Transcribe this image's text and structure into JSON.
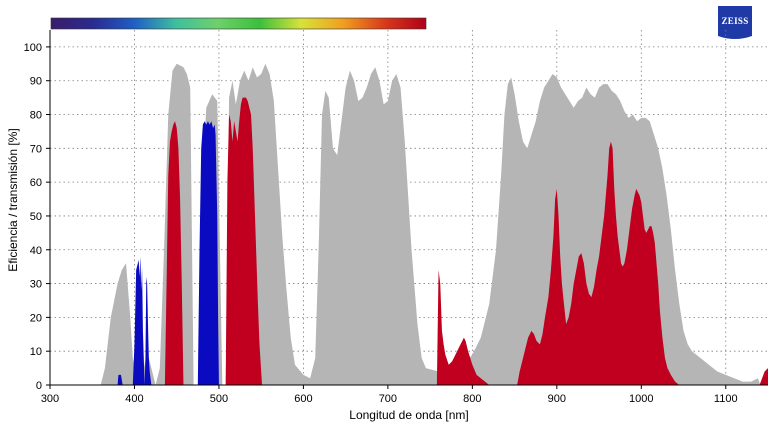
{
  "brand": {
    "logo_text": "ZEISS",
    "logo_color": "#1f3aa6"
  },
  "spectrum_bar": {
    "stops": [
      "#3b1d6b",
      "#2a2a8f",
      "#1f5fc4",
      "#3fbf9f",
      "#6fd06a",
      "#3cbf3c",
      "#d8e23a",
      "#f0a020",
      "#d83a1a",
      "#b00018"
    ]
  },
  "chart_data": {
    "type": "area",
    "xlabel": "Longitud de onda [nm]",
    "ylabel": "Eficiencia / transmisión [%]",
    "xlim": [
      300,
      1150
    ],
    "ylim": [
      0,
      105
    ],
    "x_ticks": [
      300,
      400,
      500,
      600,
      700,
      800,
      900,
      1000,
      1100
    ],
    "y_ticks": [
      0,
      10,
      20,
      30,
      40,
      50,
      60,
      70,
      80,
      90,
      100
    ],
    "grid": true,
    "legend": "none",
    "series": [
      {
        "color": "#b5b5b5",
        "points": [
          [
            360,
            0
          ],
          [
            365,
            5
          ],
          [
            372,
            20
          ],
          [
            380,
            30
          ],
          [
            385,
            34
          ],
          [
            390,
            36
          ],
          [
            395,
            20
          ],
          [
            398,
            8
          ],
          [
            402,
            3
          ],
          [
            408,
            1
          ],
          [
            415,
            10
          ],
          [
            420,
            5
          ],
          [
            425,
            0
          ],
          [
            430,
            5
          ],
          [
            435,
            40
          ],
          [
            440,
            80
          ],
          [
            445,
            93
          ],
          [
            450,
            95
          ],
          [
            458,
            94
          ],
          [
            462,
            92
          ],
          [
            466,
            88
          ],
          [
            470,
            0
          ],
          [
            476,
            0
          ],
          [
            480,
            60
          ],
          [
            485,
            82
          ],
          [
            492,
            86
          ],
          [
            498,
            84
          ],
          [
            504,
            0
          ],
          [
            508,
            0
          ],
          [
            512,
            85
          ],
          [
            516,
            90
          ],
          [
            520,
            83
          ],
          [
            525,
            90
          ],
          [
            530,
            93
          ],
          [
            535,
            90
          ],
          [
            540,
            94
          ],
          [
            545,
            91
          ],
          [
            550,
            92
          ],
          [
            555,
            95
          ],
          [
            560,
            92
          ],
          [
            565,
            84
          ],
          [
            570,
            64
          ],
          [
            575,
            44
          ],
          [
            580,
            28
          ],
          [
            585,
            14
          ],
          [
            590,
            6
          ],
          [
            600,
            3
          ],
          [
            608,
            2
          ],
          [
            614,
            8
          ],
          [
            618,
            40
          ],
          [
            622,
            80
          ],
          [
            626,
            87
          ],
          [
            630,
            85
          ],
          [
            635,
            70
          ],
          [
            640,
            68
          ],
          [
            645,
            78
          ],
          [
            650,
            88
          ],
          [
            655,
            93
          ],
          [
            660,
            90
          ],
          [
            665,
            84
          ],
          [
            670,
            85
          ],
          [
            675,
            88
          ],
          [
            680,
            92
          ],
          [
            685,
            94
          ],
          [
            690,
            90
          ],
          [
            695,
            83
          ],
          [
            700,
            84
          ],
          [
            705,
            90
          ],
          [
            710,
            92
          ],
          [
            715,
            88
          ],
          [
            720,
            72
          ],
          [
            728,
            40
          ],
          [
            735,
            18
          ],
          [
            740,
            8
          ],
          [
            745,
            5
          ],
          [
            760,
            4
          ],
          [
            775,
            4
          ],
          [
            790,
            6
          ],
          [
            800,
            9
          ],
          [
            810,
            14
          ],
          [
            820,
            24
          ],
          [
            828,
            40
          ],
          [
            834,
            62
          ],
          [
            838,
            80
          ],
          [
            842,
            89
          ],
          [
            846,
            91
          ],
          [
            850,
            86
          ],
          [
            855,
            78
          ],
          [
            860,
            72
          ],
          [
            865,
            70
          ],
          [
            870,
            74
          ],
          [
            875,
            78
          ],
          [
            880,
            84
          ],
          [
            885,
            88
          ],
          [
            890,
            90
          ],
          [
            895,
            92
          ],
          [
            900,
            91
          ],
          [
            905,
            88
          ],
          [
            910,
            86
          ],
          [
            915,
            84
          ],
          [
            920,
            82
          ],
          [
            925,
            84
          ],
          [
            930,
            85
          ],
          [
            935,
            88
          ],
          [
            940,
            86
          ],
          [
            945,
            85
          ],
          [
            950,
            88
          ],
          [
            955,
            89
          ],
          [
            960,
            89
          ],
          [
            965,
            87
          ],
          [
            970,
            86
          ],
          [
            975,
            84
          ],
          [
            980,
            81
          ],
          [
            985,
            79
          ],
          [
            990,
            80
          ],
          [
            995,
            78
          ],
          [
            1000,
            79
          ],
          [
            1005,
            79
          ],
          [
            1010,
            78
          ],
          [
            1015,
            74
          ],
          [
            1020,
            70
          ],
          [
            1025,
            64
          ],
          [
            1030,
            56
          ],
          [
            1035,
            46
          ],
          [
            1040,
            34
          ],
          [
            1045,
            24
          ],
          [
            1050,
            16
          ],
          [
            1055,
            12
          ],
          [
            1060,
            10
          ],
          [
            1070,
            8
          ],
          [
            1080,
            6
          ],
          [
            1090,
            4
          ],
          [
            1100,
            3
          ],
          [
            1110,
            2
          ],
          [
            1120,
            1
          ],
          [
            1130,
            1
          ],
          [
            1138,
            2
          ],
          [
            1141,
            0
          ]
        ]
      },
      {
        "color": "#0a0ac0",
        "points": [
          [
            380,
            0
          ],
          [
            381,
            3
          ],
          [
            384,
            3
          ],
          [
            386,
            0
          ],
          [
            398,
            0
          ],
          [
            400,
            12
          ],
          [
            402,
            34
          ],
          [
            404,
            36
          ],
          [
            405,
            37
          ],
          [
            406,
            32
          ],
          [
            407,
            38
          ],
          [
            408,
            28
          ],
          [
            409,
            35
          ],
          [
            410,
            16
          ],
          [
            412,
            0
          ],
          [
            413,
            8
          ],
          [
            414,
            32
          ],
          [
            415,
            30
          ],
          [
            416,
            18
          ],
          [
            417,
            8
          ],
          [
            418,
            4
          ],
          [
            420,
            0
          ],
          [
            475,
            0
          ],
          [
            477,
            40
          ],
          [
            479,
            70
          ],
          [
            481,
            77
          ],
          [
            483,
            78
          ],
          [
            485,
            77
          ],
          [
            487,
            78
          ],
          [
            489,
            77
          ],
          [
            491,
            78
          ],
          [
            493,
            76
          ],
          [
            495,
            77
          ],
          [
            496,
            74
          ],
          [
            498,
            50
          ],
          [
            499,
            20
          ],
          [
            500,
            0
          ]
        ]
      },
      {
        "color": "#c0001e",
        "points": [
          [
            436,
            0
          ],
          [
            438,
            30
          ],
          [
            440,
            62
          ],
          [
            442,
            72
          ],
          [
            444,
            75
          ],
          [
            446,
            77
          ],
          [
            448,
            78
          ],
          [
            450,
            76
          ],
          [
            452,
            70
          ],
          [
            454,
            55
          ],
          [
            456,
            30
          ],
          [
            458,
            0
          ],
          [
            508,
            0
          ],
          [
            510,
            60
          ],
          [
            512,
            80
          ],
          [
            514,
            78
          ],
          [
            516,
            72
          ],
          [
            518,
            78
          ],
          [
            520,
            75
          ],
          [
            522,
            72
          ],
          [
            524,
            78
          ],
          [
            526,
            83
          ],
          [
            528,
            85
          ],
          [
            530,
            85
          ],
          [
            532,
            85
          ],
          [
            534,
            84
          ],
          [
            536,
            82
          ],
          [
            538,
            80
          ],
          [
            540,
            70
          ],
          [
            542,
            55
          ],
          [
            544,
            40
          ],
          [
            546,
            25
          ],
          [
            548,
            12
          ],
          [
            551,
            0
          ],
          [
            758,
            0
          ],
          [
            760,
            34
          ],
          [
            762,
            30
          ],
          [
            764,
            16
          ],
          [
            766,
            12
          ],
          [
            768,
            9
          ],
          [
            772,
            6
          ],
          [
            776,
            7
          ],
          [
            780,
            9
          ],
          [
            784,
            11
          ],
          [
            788,
            13
          ],
          [
            790,
            14
          ],
          [
            792,
            13
          ],
          [
            795,
            10
          ],
          [
            800,
            6
          ],
          [
            805,
            3
          ],
          [
            810,
            2
          ],
          [
            815,
            1
          ],
          [
            820,
            0
          ],
          [
            853,
            0
          ],
          [
            856,
            4
          ],
          [
            860,
            8
          ],
          [
            863,
            11
          ],
          [
            866,
            14
          ],
          [
            870,
            16
          ],
          [
            873,
            15
          ],
          [
            876,
            13
          ],
          [
            880,
            12
          ],
          [
            883,
            15
          ],
          [
            886,
            20
          ],
          [
            890,
            26
          ],
          [
            893,
            34
          ],
          [
            896,
            44
          ],
          [
            898,
            55
          ],
          [
            900,
            58
          ],
          [
            902,
            50
          ],
          [
            904,
            38
          ],
          [
            906,
            30
          ],
          [
            908,
            25
          ],
          [
            911,
            18
          ],
          [
            914,
            20
          ],
          [
            917,
            24
          ],
          [
            920,
            30
          ],
          [
            923,
            34
          ],
          [
            926,
            38
          ],
          [
            929,
            39
          ],
          [
            932,
            36
          ],
          [
            935,
            30
          ],
          [
            938,
            27
          ],
          [
            941,
            26
          ],
          [
            944,
            29
          ],
          [
            947,
            34
          ],
          [
            950,
            38
          ],
          [
            953,
            44
          ],
          [
            956,
            50
          ],
          [
            958,
            56
          ],
          [
            960,
            62
          ],
          [
            962,
            70
          ],
          [
            964,
            72
          ],
          [
            966,
            70
          ],
          [
            968,
            58
          ],
          [
            970,
            50
          ],
          [
            972,
            44
          ],
          [
            974,
            40
          ],
          [
            976,
            36
          ],
          [
            978,
            35
          ],
          [
            980,
            36
          ],
          [
            983,
            40
          ],
          [
            986,
            46
          ],
          [
            989,
            52
          ],
          [
            992,
            56
          ],
          [
            994,
            58
          ],
          [
            996,
            57
          ],
          [
            998,
            56
          ],
          [
            1000,
            54
          ],
          [
            1002,
            50
          ],
          [
            1004,
            46
          ],
          [
            1006,
            45
          ],
          [
            1008,
            46
          ],
          [
            1010,
            47
          ],
          [
            1012,
            47
          ],
          [
            1014,
            45
          ],
          [
            1016,
            42
          ],
          [
            1018,
            36
          ],
          [
            1020,
            30
          ],
          [
            1022,
            22
          ],
          [
            1025,
            14
          ],
          [
            1028,
            8
          ],
          [
            1031,
            5
          ],
          [
            1035,
            3
          ],
          [
            1040,
            1
          ],
          [
            1045,
            0
          ],
          [
            1140,
            0
          ],
          [
            1143,
            2
          ],
          [
            1146,
            4
          ],
          [
            1150,
            5
          ]
        ]
      }
    ]
  }
}
